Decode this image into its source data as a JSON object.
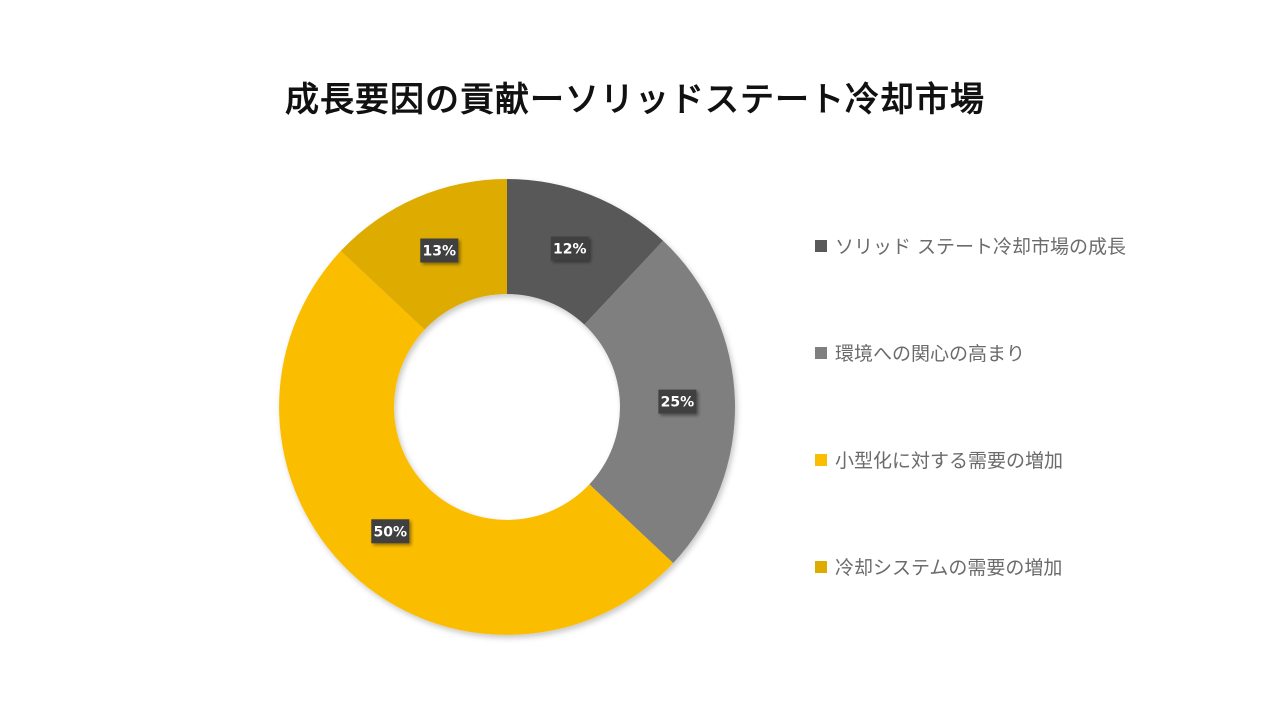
{
  "chart_data": {
    "type": "pie",
    "title": "成長要因の貢献ーソリッドステート冷却市場",
    "categories": [
      "ソリッド ステート冷却市場の成長",
      "環境への関心の高まり",
      "小型化に対する需要の増加",
      "冷却システムの需要の増加"
    ],
    "values": [
      12,
      25,
      50,
      13
    ],
    "data_labels": [
      "12%",
      "25%",
      "50%",
      "13%"
    ],
    "colors": [
      "#595959",
      "#7f7f7f",
      "#fbbd00",
      "#deab00"
    ],
    "donut": true,
    "legend_position": "right"
  }
}
